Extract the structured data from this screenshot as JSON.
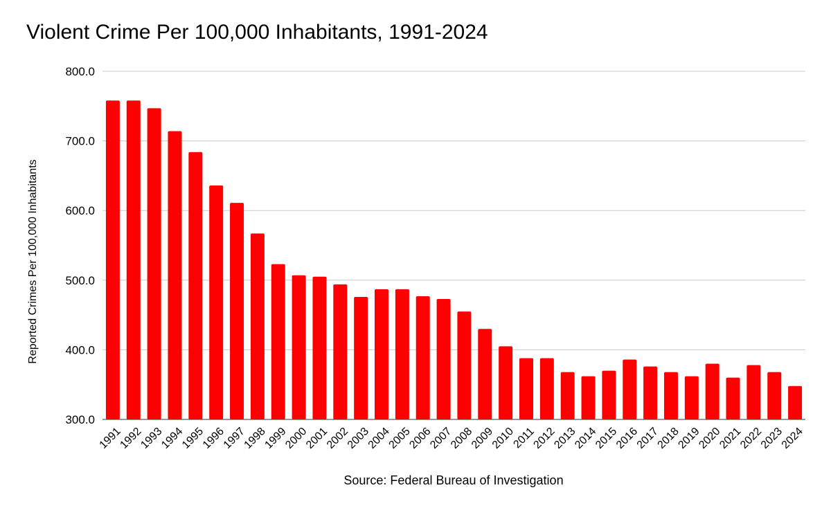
{
  "chart_data": {
    "type": "bar",
    "title": "Violent Crime Per 100,000 Inhabitants, 1991-2024",
    "xlabel": "Source: Federal Bureau of Investigation",
    "ylabel": "Reported Crimes Per 100,000 Inhabitants",
    "ylim": [
      300,
      800
    ],
    "yticks": [
      "300.0",
      "400.0",
      "500.0",
      "600.0",
      "700.0",
      "800.0"
    ],
    "grid": true,
    "bar_color": "#ff0000",
    "categories": [
      "1991",
      "1992",
      "1993",
      "1994",
      "1995",
      "1996",
      "1997",
      "1998",
      "1999",
      "2000",
      "2001",
      "2002",
      "2003",
      "2004",
      "2005",
      "2006",
      "2007",
      "2008",
      "2009",
      "2010",
      "2011",
      "2012",
      "2013",
      "2014",
      "2015",
      "2016",
      "2017",
      "2018",
      "2019",
      "2020",
      "2021",
      "2022",
      "2023",
      "2024"
    ],
    "values": [
      758,
      758,
      747,
      714,
      684,
      636,
      611,
      567,
      523,
      507,
      505,
      494,
      476,
      487,
      487,
      477,
      473,
      455,
      430,
      405,
      388,
      388,
      368,
      362,
      370,
      386,
      376,
      368,
      362,
      380,
      360,
      378,
      368,
      348
    ]
  }
}
